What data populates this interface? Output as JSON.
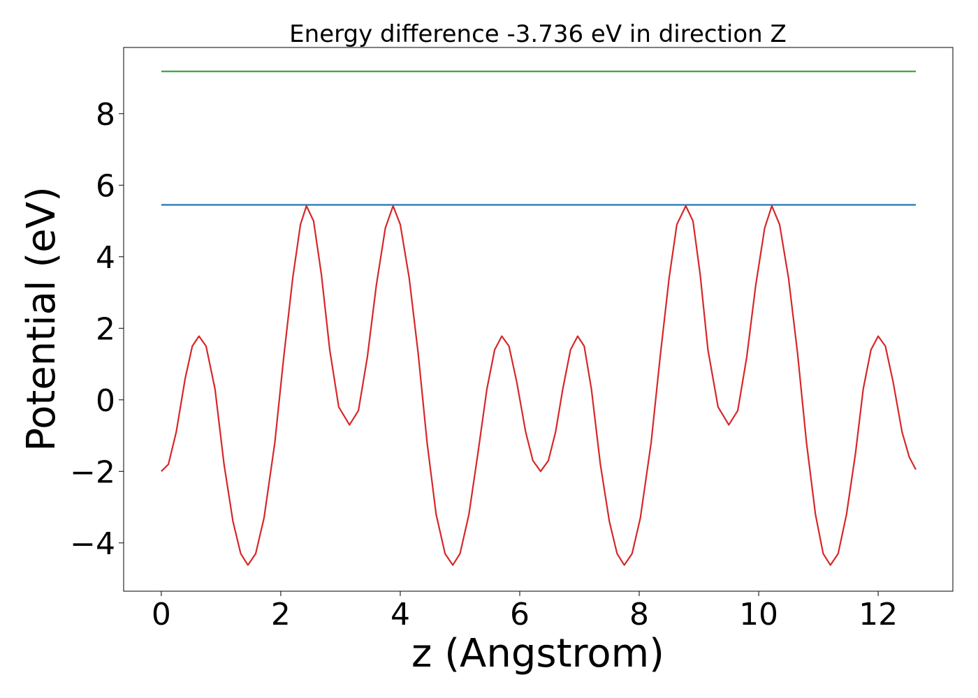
{
  "chart_data": {
    "type": "line",
    "title": "Energy difference -3.736 eV in direction Z",
    "xlabel": "z (Angstrom)",
    "ylabel": "Potential (eV)",
    "xlim": [
      -0.63,
      13.25
    ],
    "ylim": [
      -5.35,
      9.85
    ],
    "xticks": [
      0,
      2,
      4,
      6,
      8,
      10,
      12
    ],
    "yticks": [
      -4,
      -2,
      0,
      2,
      4,
      6,
      8
    ],
    "xtick_labels": [
      "0",
      "2",
      "4",
      "6",
      "8",
      "10",
      "12"
    ],
    "ytick_labels": [
      "−4",
      "−2",
      "0",
      "2",
      "4",
      "6",
      "8"
    ],
    "grid": false,
    "series": [
      {
        "color": "#d62728",
        "points": [
          [
            0.0,
            -2.0
          ],
          [
            0.12,
            -1.8
          ],
          [
            0.25,
            -0.9
          ],
          [
            0.4,
            0.6
          ],
          [
            0.52,
            1.5
          ],
          [
            0.63,
            1.78
          ],
          [
            0.75,
            1.5
          ],
          [
            0.9,
            0.3
          ],
          [
            1.05,
            -1.8
          ],
          [
            1.2,
            -3.4
          ],
          [
            1.33,
            -4.3
          ],
          [
            1.45,
            -4.62
          ],
          [
            1.58,
            -4.3
          ],
          [
            1.72,
            -3.3
          ],
          [
            1.9,
            -1.2
          ],
          [
            2.05,
            1.2
          ],
          [
            2.2,
            3.4
          ],
          [
            2.33,
            4.9
          ],
          [
            2.43,
            5.42
          ],
          [
            2.55,
            5.0
          ],
          [
            2.68,
            3.5
          ],
          [
            2.82,
            1.4
          ],
          [
            2.97,
            -0.2
          ],
          [
            3.15,
            -0.7
          ],
          [
            3.3,
            -0.3
          ],
          [
            3.45,
            1.2
          ],
          [
            3.6,
            3.2
          ],
          [
            3.75,
            4.8
          ],
          [
            3.88,
            5.42
          ],
          [
            4.0,
            4.9
          ],
          [
            4.15,
            3.4
          ],
          [
            4.3,
            1.3
          ],
          [
            4.45,
            -1.2
          ],
          [
            4.6,
            -3.2
          ],
          [
            4.75,
            -4.3
          ],
          [
            4.88,
            -4.62
          ],
          [
            5.0,
            -4.3
          ],
          [
            5.15,
            -3.2
          ],
          [
            5.3,
            -1.5
          ],
          [
            5.45,
            0.3
          ],
          [
            5.58,
            1.4
          ],
          [
            5.7,
            1.78
          ],
          [
            5.82,
            1.5
          ],
          [
            5.95,
            0.5
          ],
          [
            6.1,
            -0.9
          ],
          [
            6.22,
            -1.7
          ],
          [
            6.35,
            -2.0
          ],
          [
            6.48,
            -1.7
          ],
          [
            6.6,
            -0.9
          ],
          [
            6.72,
            0.3
          ],
          [
            6.85,
            1.4
          ],
          [
            6.97,
            1.78
          ],
          [
            7.08,
            1.5
          ],
          [
            7.2,
            0.3
          ],
          [
            7.35,
            -1.8
          ],
          [
            7.5,
            -3.4
          ],
          [
            7.63,
            -4.3
          ],
          [
            7.75,
            -4.62
          ],
          [
            7.88,
            -4.3
          ],
          [
            8.02,
            -3.3
          ],
          [
            8.2,
            -1.2
          ],
          [
            8.35,
            1.2
          ],
          [
            8.5,
            3.4
          ],
          [
            8.63,
            4.9
          ],
          [
            8.78,
            5.42
          ],
          [
            8.9,
            5.0
          ],
          [
            9.02,
            3.5
          ],
          [
            9.15,
            1.4
          ],
          [
            9.32,
            -0.2
          ],
          [
            9.5,
            -0.7
          ],
          [
            9.65,
            -0.3
          ],
          [
            9.8,
            1.2
          ],
          [
            9.95,
            3.2
          ],
          [
            10.1,
            4.8
          ],
          [
            10.22,
            5.42
          ],
          [
            10.35,
            4.9
          ],
          [
            10.5,
            3.4
          ],
          [
            10.65,
            1.3
          ],
          [
            10.8,
            -1.2
          ],
          [
            10.95,
            -3.2
          ],
          [
            11.08,
            -4.3
          ],
          [
            11.2,
            -4.62
          ],
          [
            11.33,
            -4.3
          ],
          [
            11.47,
            -3.2
          ],
          [
            11.62,
            -1.5
          ],
          [
            11.75,
            0.3
          ],
          [
            11.88,
            1.4
          ],
          [
            12.0,
            1.78
          ],
          [
            12.12,
            1.5
          ],
          [
            12.25,
            0.5
          ],
          [
            12.4,
            -0.9
          ],
          [
            12.52,
            -1.6
          ],
          [
            12.63,
            -1.95
          ]
        ]
      },
      {
        "color": "#1f77b4",
        "points": [
          [
            0.0,
            5.45
          ],
          [
            12.63,
            5.45
          ]
        ]
      },
      {
        "color": "#2ca02c",
        "points": [
          [
            0.0,
            9.18
          ],
          [
            12.63,
            9.18
          ]
        ]
      }
    ]
  }
}
